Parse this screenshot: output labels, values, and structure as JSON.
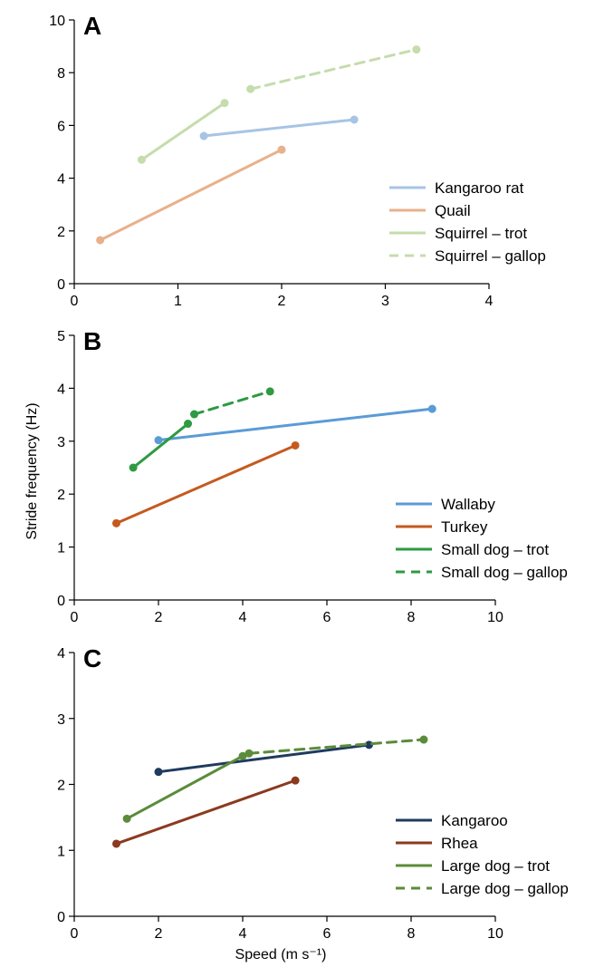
{
  "figure": {
    "ylabel": "Stride frequency (Hz)",
    "xlabel": "Speed (m s⁻¹)"
  },
  "chart_data": [
    {
      "type": "line",
      "panel": "A",
      "xlim": [
        0,
        4
      ],
      "ylim": [
        0,
        10
      ],
      "xticks": [
        0,
        1,
        2,
        3,
        4
      ],
      "yticks": [
        0,
        2,
        4,
        6,
        8,
        10
      ],
      "legend_position": "bottom-right",
      "series": [
        {
          "name": "Kangaroo rat",
          "color": "#a7c4e4",
          "dashed": false,
          "points": [
            [
              1.25,
              5.6
            ],
            [
              2.7,
              6.22
            ]
          ]
        },
        {
          "name": "Quail",
          "color": "#e8b08c",
          "dashed": false,
          "points": [
            [
              0.25,
              1.65
            ],
            [
              2.0,
              5.08
            ]
          ]
        },
        {
          "name": "Squirrel – trot",
          "color": "#c5dcad",
          "dashed": false,
          "points": [
            [
              0.65,
              4.7
            ],
            [
              1.45,
              6.85
            ]
          ]
        },
        {
          "name": "Squirrel – gallop",
          "color": "#c5dcad",
          "dashed": true,
          "points": [
            [
              1.7,
              7.38
            ],
            [
              3.3,
              8.88
            ]
          ]
        }
      ]
    },
    {
      "type": "line",
      "panel": "B",
      "xlim": [
        0,
        10
      ],
      "ylim": [
        0,
        5
      ],
      "xticks": [
        0,
        2,
        4,
        6,
        8,
        10
      ],
      "yticks": [
        0,
        1,
        2,
        3,
        4,
        5
      ],
      "legend_position": "bottom-right",
      "series": [
        {
          "name": "Wallaby",
          "color": "#5b9bd5",
          "dashed": false,
          "points": [
            [
              2.0,
              3.02
            ],
            [
              8.5,
              3.61
            ]
          ]
        },
        {
          "name": "Turkey",
          "color": "#c55a1f",
          "dashed": false,
          "points": [
            [
              1.0,
              1.45
            ],
            [
              5.25,
              2.92
            ]
          ]
        },
        {
          "name": "Small dog – trot",
          "color": "#2e9a42",
          "dashed": false,
          "points": [
            [
              1.4,
              2.5
            ],
            [
              2.7,
              3.33
            ]
          ]
        },
        {
          "name": "Small dog – gallop",
          "color": "#2e9a42",
          "dashed": true,
          "points": [
            [
              2.85,
              3.51
            ],
            [
              4.65,
              3.94
            ]
          ]
        }
      ]
    },
    {
      "type": "line",
      "panel": "C",
      "xlim": [
        0,
        10
      ],
      "ylim": [
        0,
        4
      ],
      "xticks": [
        0,
        2,
        4,
        6,
        8,
        10
      ],
      "yticks": [
        0,
        1,
        2,
        3,
        4
      ],
      "legend_position": "bottom-right",
      "series": [
        {
          "name": "Kangaroo",
          "color": "#1f3a5f",
          "dashed": false,
          "points": [
            [
              2.0,
              2.19
            ],
            [
              7.0,
              2.6
            ]
          ]
        },
        {
          "name": "Rhea",
          "color": "#8b3a1f",
          "dashed": false,
          "points": [
            [
              1.0,
              1.1
            ],
            [
              5.25,
              2.06
            ]
          ]
        },
        {
          "name": "Large dog – trot",
          "color": "#5b8c3a",
          "dashed": false,
          "points": [
            [
              1.25,
              1.48
            ],
            [
              4.0,
              2.43
            ]
          ]
        },
        {
          "name": "Large dog – gallop",
          "color": "#5b8c3a",
          "dashed": true,
          "points": [
            [
              4.15,
              2.47
            ],
            [
              8.3,
              2.68
            ]
          ]
        }
      ]
    }
  ]
}
